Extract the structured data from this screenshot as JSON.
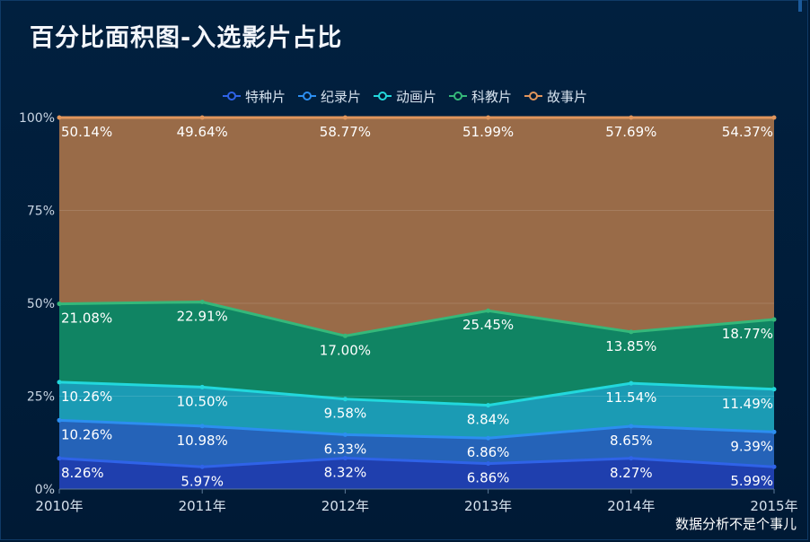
{
  "title": "百分比面积图-入选影片占比",
  "watermark": "数据分析不是个事儿",
  "chart_data": {
    "type": "area",
    "stacked": "percent",
    "title": "百分比面积图-入选影片占比",
    "categories": [
      "2010年",
      "2011年",
      "2012年",
      "2013年",
      "2014年",
      "2015年"
    ],
    "yticks": [
      "0%",
      "25%",
      "50%",
      "75%",
      "100%"
    ],
    "ylim": [
      0,
      100
    ],
    "legend_position": "top",
    "series": [
      {
        "name": "特种片",
        "color": "#1f3fae",
        "line": "#2f63e8",
        "values": [
          8.26,
          5.97,
          8.32,
          6.86,
          8.27,
          5.99
        ],
        "labels": [
          "8.26%",
          "5.97%",
          "8.32%",
          "6.86%",
          "8.27%",
          "5.99%"
        ]
      },
      {
        "name": "纪录片",
        "color": "#2563b8",
        "line": "#2c8ef0",
        "values": [
          10.26,
          10.98,
          6.33,
          6.86,
          8.65,
          9.39
        ],
        "labels": [
          "10.26%",
          "10.98%",
          "6.33%",
          "6.86%",
          "8.65%",
          "9.39%"
        ]
      },
      {
        "name": "动画片",
        "color": "#1b9bb4",
        "line": "#22d8dc",
        "values": [
          10.26,
          10.5,
          9.58,
          8.84,
          11.54,
          11.49
        ],
        "labels": [
          "10.26%",
          "10.50%",
          "9.58%",
          "8.84%",
          "11.54%",
          "11.49%"
        ]
      },
      {
        "name": "科教片",
        "color": "#108463",
        "line": "#35b87a",
        "values": [
          21.08,
          22.91,
          17.0,
          25.45,
          13.85,
          18.77
        ],
        "labels": [
          "21.08%",
          "22.91%",
          "17.00%",
          "25.45%",
          "13.85%",
          "18.77%"
        ]
      },
      {
        "name": "故事片",
        "color": "#996b48",
        "line": "#e0955c",
        "values": [
          50.14,
          49.64,
          58.77,
          51.99,
          57.69,
          54.37
        ],
        "labels": [
          "50.14%",
          "49.64%",
          "58.77%",
          "51.99%",
          "57.69%",
          "54.37%"
        ]
      }
    ]
  }
}
